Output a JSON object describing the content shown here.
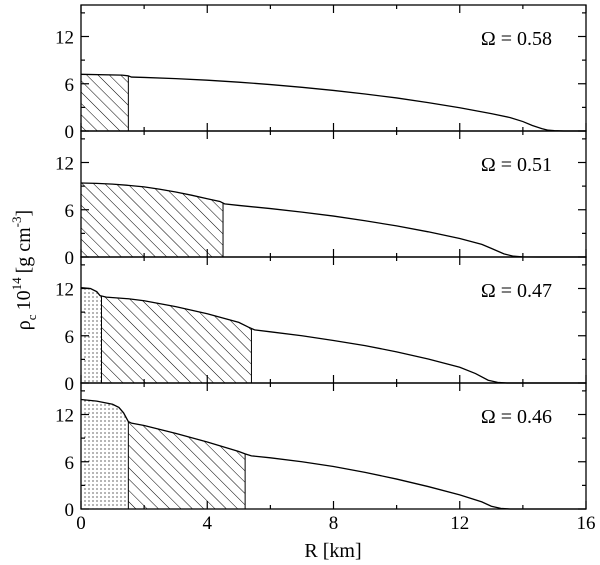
{
  "chart_data": {
    "type": "line",
    "layout": "four vertically stacked panels sharing the x axis",
    "xlabel": "R [km]",
    "ylabel": "ρ_c 10^14 [g cm^-3]",
    "xlim": [
      0,
      16
    ],
    "ylim": [
      0,
      16
    ],
    "xticks": [
      "0",
      "4",
      "8",
      "12",
      "16"
    ],
    "yticks": [
      "0",
      "6",
      "12"
    ],
    "grid": false,
    "panels": [
      {
        "label": "Ω = 0.58",
        "regions": [
          {
            "pattern": "hatch",
            "x_start": 0,
            "x_end": 1.5
          }
        ],
        "x": [
          0,
          1.3,
          1.5,
          1.6,
          2,
          3,
          4,
          5,
          6,
          7,
          8,
          9,
          10,
          11,
          12,
          13,
          13.6,
          14,
          14.3,
          14.6,
          14.8,
          15,
          15.3,
          16
        ],
        "y": [
          7.2,
          7.1,
          7.0,
          6.85,
          6.8,
          6.65,
          6.45,
          6.2,
          5.9,
          5.55,
          5.15,
          4.7,
          4.2,
          3.6,
          2.95,
          2.2,
          1.7,
          1.2,
          0.7,
          0.3,
          0.1,
          0.04,
          0.0,
          0.0
        ]
      },
      {
        "label": "Ω = 0.51",
        "regions": [
          {
            "pattern": "hatch",
            "x_start": 0,
            "x_end": 4.5
          }
        ],
        "x": [
          0,
          0.5,
          1,
          1.5,
          2,
          2.5,
          3,
          3.5,
          4,
          4.4,
          4.55,
          5,
          6,
          7,
          8,
          9,
          10,
          11,
          12,
          12.7,
          13,
          13.4,
          13.7,
          14,
          14.5,
          16
        ],
        "y": [
          9.4,
          9.35,
          9.25,
          9.1,
          8.9,
          8.6,
          8.25,
          7.85,
          7.4,
          7.05,
          6.75,
          6.55,
          6.15,
          5.7,
          5.2,
          4.6,
          3.95,
          3.2,
          2.35,
          1.6,
          1.1,
          0.4,
          0.1,
          0.02,
          0.0,
          0.0
        ]
      },
      {
        "label": "Ω = 0.47",
        "regions": [
          {
            "pattern": "dots",
            "x_start": 0,
            "x_end": 0.65
          },
          {
            "pattern": "hatch",
            "x_start": 0.65,
            "x_end": 5.4
          }
        ],
        "x": [
          0,
          0.3,
          0.5,
          0.6,
          0.8,
          1.5,
          2,
          3,
          4,
          5,
          5.3,
          5.5,
          6,
          7,
          8,
          9,
          10,
          11,
          12,
          12.5,
          12.9,
          13.2,
          13.5,
          16
        ],
        "y": [
          12.1,
          12.0,
          11.6,
          11.1,
          10.9,
          10.7,
          10.45,
          9.7,
          8.8,
          7.7,
          7.1,
          6.75,
          6.5,
          6.0,
          5.4,
          4.75,
          3.95,
          3.05,
          2.0,
          1.2,
          0.35,
          0.08,
          0.0,
          0.0
        ]
      },
      {
        "label": "Ω = 0.46",
        "regions": [
          {
            "pattern": "dots",
            "x_start": 0,
            "x_end": 1.5
          },
          {
            "pattern": "hatch",
            "x_start": 1.5,
            "x_end": 5.2
          }
        ],
        "x": [
          0,
          0.5,
          1,
          1.2,
          1.35,
          1.5,
          1.6,
          2,
          3,
          4,
          5,
          5.2,
          5.4,
          6,
          7,
          8,
          9,
          10,
          11,
          12,
          12.7,
          13,
          13.3,
          13.6,
          16
        ],
        "y": [
          13.9,
          13.7,
          13.3,
          12.9,
          12.2,
          11.1,
          10.9,
          10.6,
          9.6,
          8.5,
          7.3,
          7.0,
          6.75,
          6.5,
          6.0,
          5.4,
          4.65,
          3.8,
          2.85,
          1.8,
          0.9,
          0.35,
          0.08,
          0.0,
          0.0
        ]
      }
    ]
  }
}
